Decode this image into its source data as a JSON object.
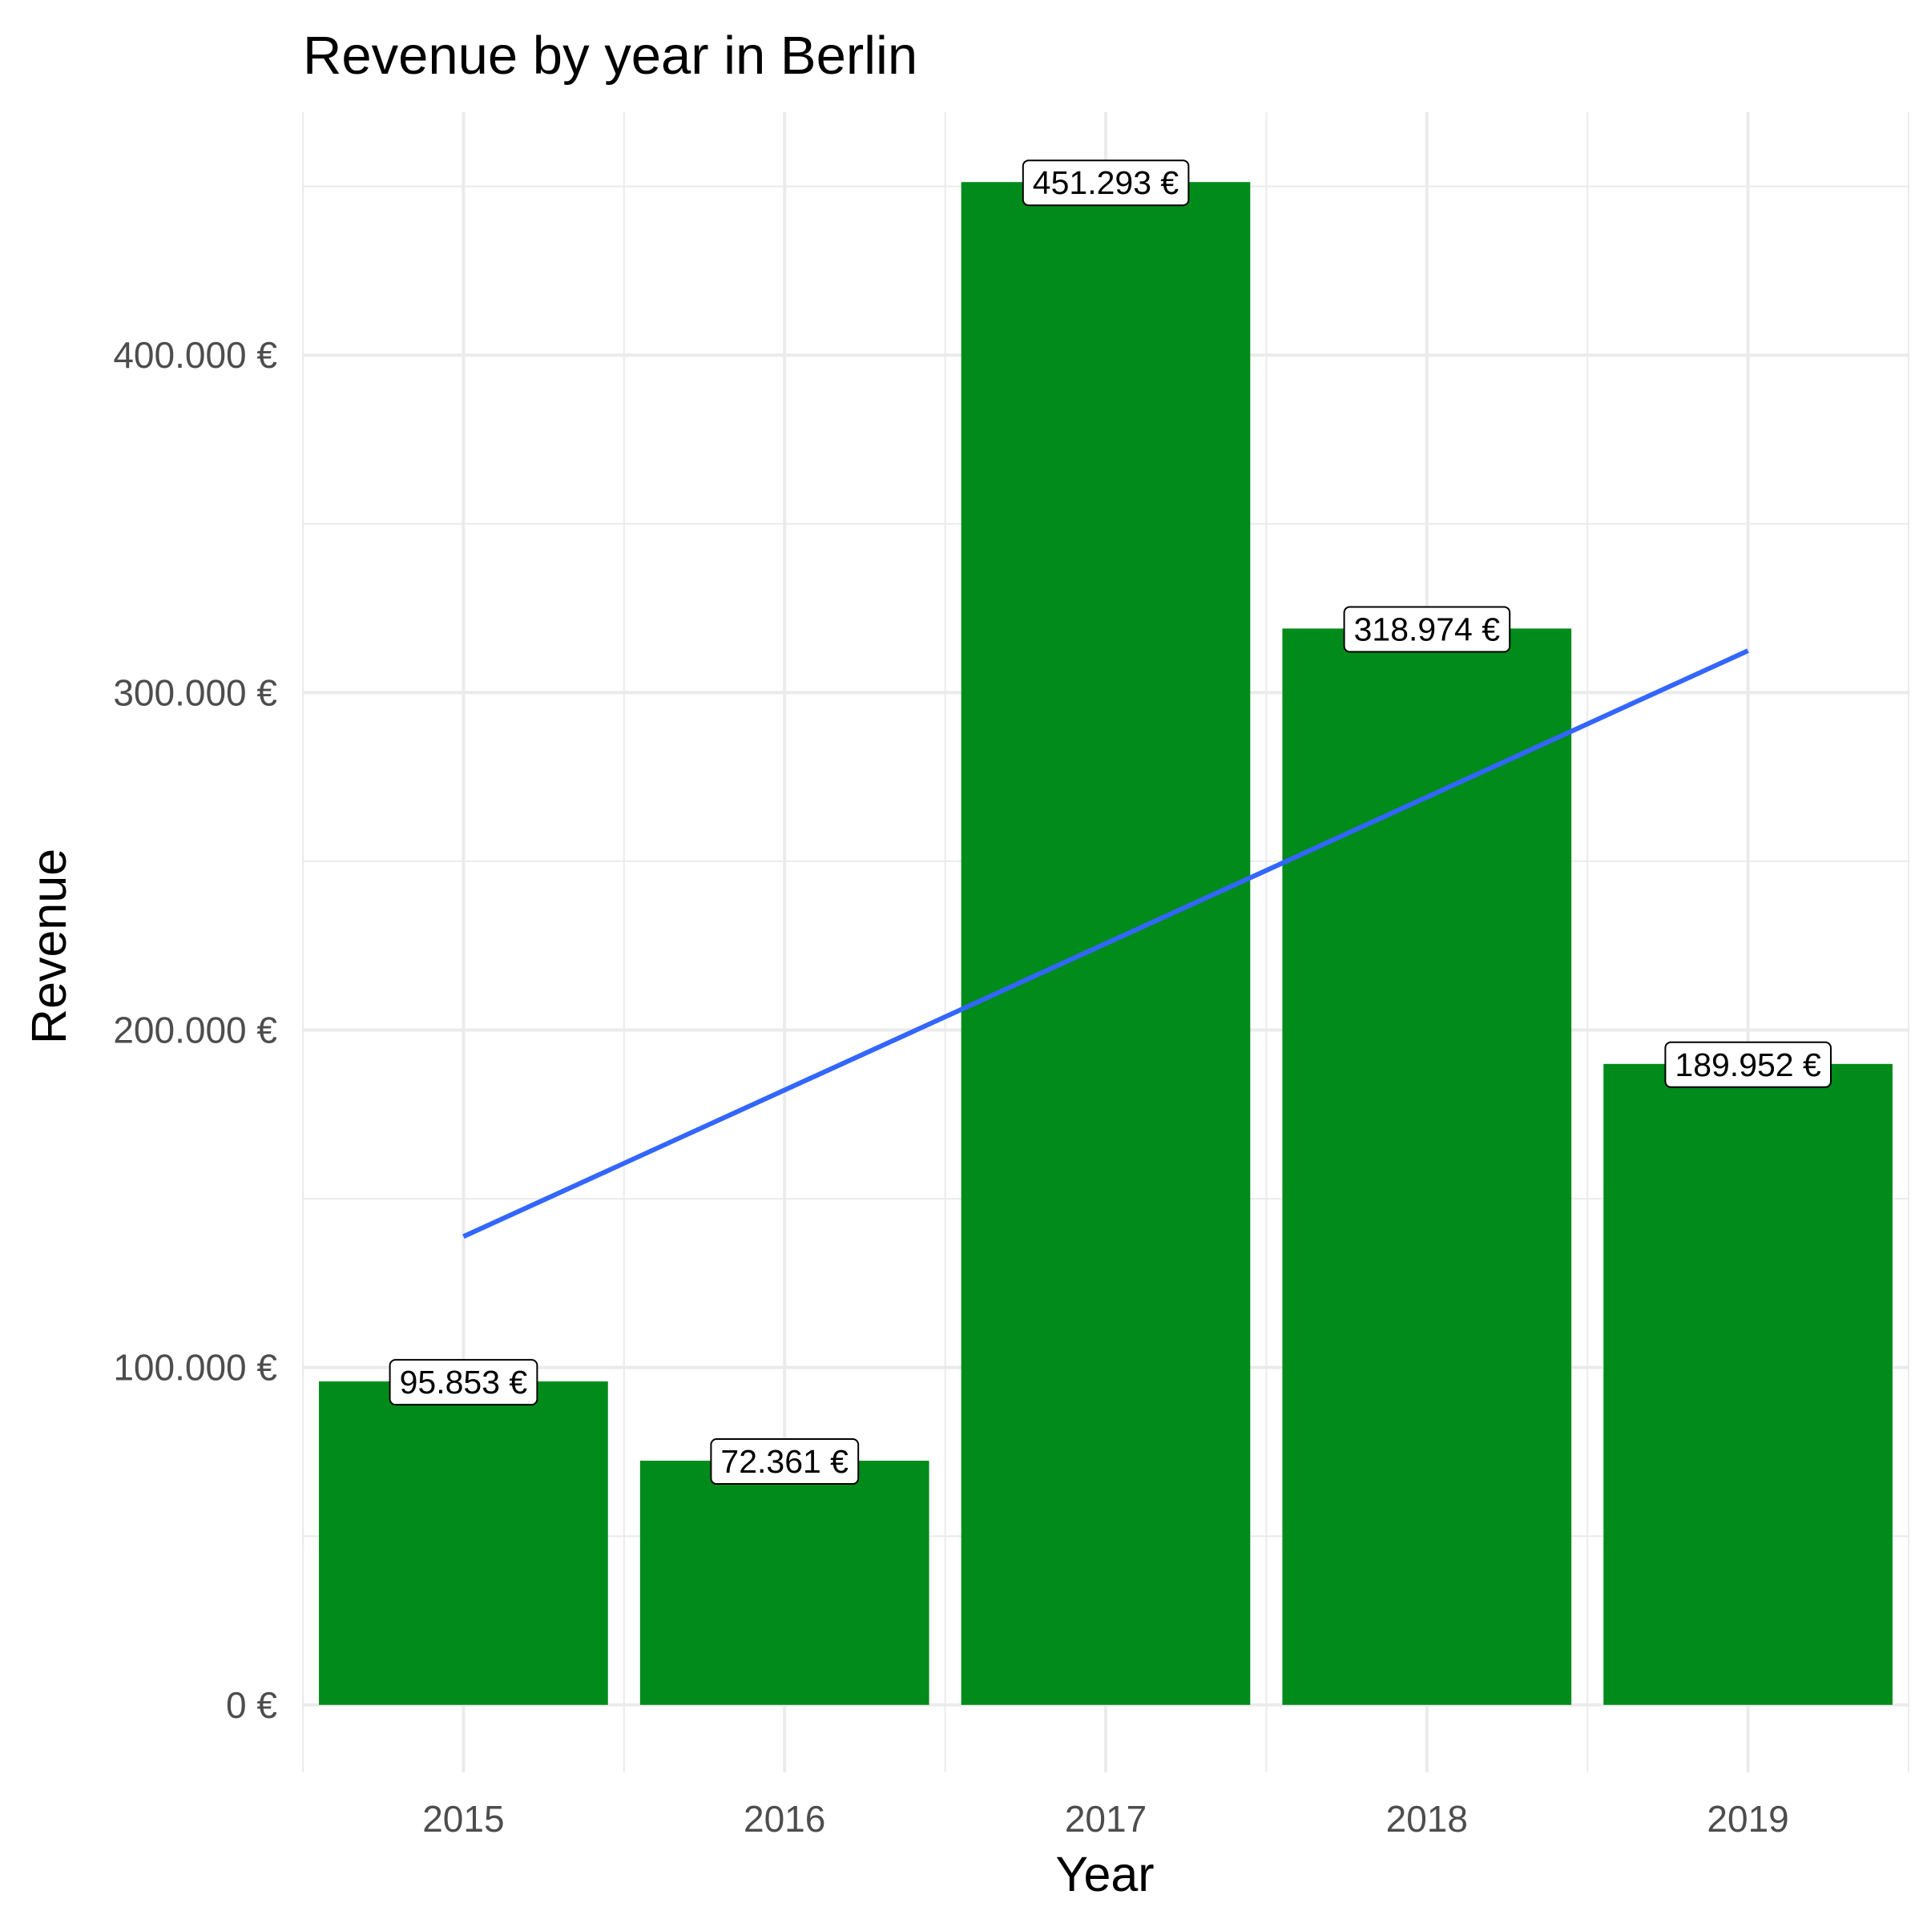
{
  "chart_data": {
    "type": "bar",
    "title": "Revenue by year in Berlin",
    "xlabel": "Year",
    "ylabel": "Revenue",
    "categories": [
      "2015",
      "2016",
      "2017",
      "2018",
      "2019"
    ],
    "values": [
      95853,
      72361,
      451293,
      318974,
      189952
    ],
    "data_labels": [
      "95.853 €",
      "72.361 €",
      "451.293 €",
      "318.974 €",
      "189.952 €"
    ],
    "y_ticks": [
      0,
      100000,
      200000,
      300000,
      400000
    ],
    "y_tick_labels": [
      "0 €",
      "100.000 €",
      "200.000 €",
      "300.000 €",
      "400.000 €"
    ],
    "ylim": [
      -20000,
      472000
    ],
    "trend_line": {
      "type": "linear",
      "start": {
        "x": "2015",
        "y": 138800
      },
      "end": {
        "x": "2019",
        "y": 312400
      }
    },
    "grid": true,
    "legend": "none",
    "colors": {
      "bar": "#008b1a",
      "trend": "#3366ff",
      "grid": "#ebebeb"
    }
  }
}
